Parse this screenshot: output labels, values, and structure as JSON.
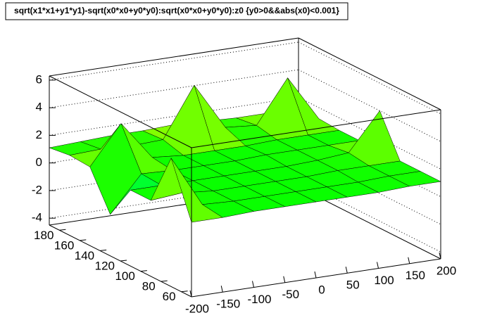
{
  "chart_data": {
    "type": "surface",
    "title": "sqrt(x1*x1+y1*y1)-sqrt(x0*x0+y0*y0):sqrt(x0*x0+y0*y0):z0 {y0>0&&abs(x0)<0.001}",
    "xlim": [
      -200,
      200
    ],
    "xticks": [
      -200,
      -150,
      -100,
      -50,
      0,
      50,
      100,
      150,
      200
    ],
    "ylim": [
      50,
      190
    ],
    "yticks": [
      60,
      80,
      100,
      120,
      140,
      160,
      180
    ],
    "zlim": [
      -4.5,
      6.3
    ],
    "zticks": [
      -4,
      -2,
      0,
      2,
      4,
      6
    ],
    "palette": [
      "#0000ff",
      "#00ffff",
      "#00ff00",
      "#ffff00",
      "#ff0000"
    ],
    "grid": true,
    "z": [
      [
        0.9,
        0.9,
        1.0,
        1.0,
        1.0,
        1.0,
        1.0,
        1.1,
        1.1
      ],
      [
        4.8,
        1.1,
        1.0,
        1.0,
        1.0,
        1.0,
        1.0,
        1.1,
        1.1
      ],
      [
        1.0,
        1.2,
        1.0,
        1.0,
        1.0,
        1.0,
        1.1,
        1.1,
        1.1
      ],
      [
        1.0,
        1.0,
        1.0,
        1.0,
        1.0,
        1.0,
        1.1,
        1.3,
        4.0
      ],
      [
        -1.5,
        1.1,
        1.0,
        1.0,
        1.0,
        1.1,
        1.1,
        1.1,
        1.1
      ],
      [
        1.2,
        4.0,
        1.2,
        1.0,
        1.0,
        1.0,
        1.1,
        1.1,
        1.1
      ],
      [
        1.3,
        1.4,
        1.3,
        1.4,
        5.0,
        1.6,
        1.4,
        4.5,
        1.2
      ],
      [
        1.1,
        1.2,
        1.3,
        1.3,
        1.4,
        1.3,
        1.2,
        1.2,
        1.1
      ]
    ]
  }
}
